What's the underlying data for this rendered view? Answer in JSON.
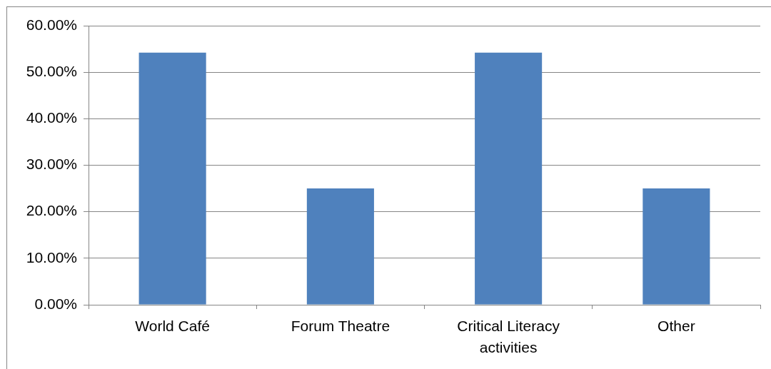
{
  "chart_data": {
    "type": "bar",
    "categories": [
      "World Café",
      "Forum Theatre",
      "Critical Literacy activities",
      "Other"
    ],
    "values": [
      54.2,
      25,
      54.2,
      25
    ],
    "color": "#4f81bd",
    "ylim": [
      0,
      60
    ],
    "yticks": [
      {
        "value": 0,
        "label": "0.00%"
      },
      {
        "value": 10,
        "label": "10.00%"
      },
      {
        "value": 20,
        "label": "20.00%"
      },
      {
        "value": 30,
        "label": "30.00%"
      },
      {
        "value": 40,
        "label": "40.00%"
      },
      {
        "value": 50,
        "label": "50.00%"
      },
      {
        "value": 60,
        "label": "60.00%"
      }
    ],
    "grid": "y",
    "legend": false
  }
}
